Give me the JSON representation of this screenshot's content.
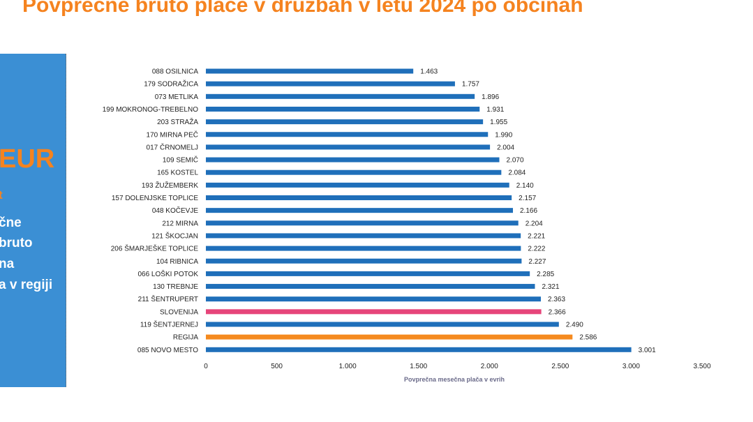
{
  "slide": {
    "title": "Povprečne bruto plače v družbah v letu 2024 po občinah"
  },
  "side_panel": {
    "value_text": "EUR",
    "sub_text": "t",
    "lines": [
      "čne",
      "bruto",
      "na",
      "a v regiji"
    ],
    "colors": {
      "background": "#3b8fd4",
      "accent": "#f5831f",
      "text": "#ffffff"
    }
  },
  "chart_data": {
    "type": "bar",
    "orientation": "horizontal",
    "categories": [
      "088 OSILNICA",
      "179 SODRAŽICA",
      "073 METLIKA",
      "199 MOKRONOG-TREBELNO",
      "203 STRAŽA",
      "170 MIRNA PEČ",
      "017 ČRNOMELJ",
      "109 SEMIČ",
      "165 KOSTEL",
      "193 ŽUŽEMBERK",
      "157 DOLENJSKE TOPLICE",
      "048 KOČEVJE",
      "212 MIRNA",
      "121 ŠKOCJAN",
      "206 ŠMARJEŠKE TOPLICE",
      "104 RIBNICA",
      "066 LOŠKI POTOK",
      "130 TREBNJE",
      "211 ŠENTRUPERT",
      "SLOVENIJA",
      "119 ŠENTJERNEJ",
      "REGIJA",
      "085 NOVO MESTO"
    ],
    "values": [
      1463,
      1757,
      1896,
      1931,
      1955,
      1990,
      2004,
      2070,
      2084,
      2140,
      2157,
      2166,
      2204,
      2221,
      2222,
      2227,
      2285,
      2321,
      2363,
      2366,
      2490,
      2586,
      3001
    ],
    "value_labels": [
      "1.463",
      "1.757",
      "1.896",
      "1.931",
      "1.955",
      "1.990",
      "2.004",
      "2.070",
      "2.084",
      "2.140",
      "2.157",
      "2.166",
      "2.204",
      "2.221",
      "2.222",
      "2.227",
      "2.285",
      "2.321",
      "2.363",
      "2.366",
      "2.490",
      "2.586",
      "3.001"
    ],
    "bar_colors": {
      "default": "#1f6fba",
      "SLOVENIJA": "#e6457a",
      "REGIJA": "#f58a1f"
    },
    "xlabel": "Povprečna mesečna plača v evrih",
    "ylabel": "",
    "xlim": [
      0,
      3500
    ],
    "x_ticks": [
      0,
      500,
      1000,
      1500,
      2000,
      2500,
      3000,
      3500
    ],
    "x_tick_labels": [
      "0",
      "500",
      "1.000",
      "1.500",
      "2.000",
      "2.500",
      "3.000",
      "3.500"
    ],
    "grid": false,
    "legend": "none"
  }
}
